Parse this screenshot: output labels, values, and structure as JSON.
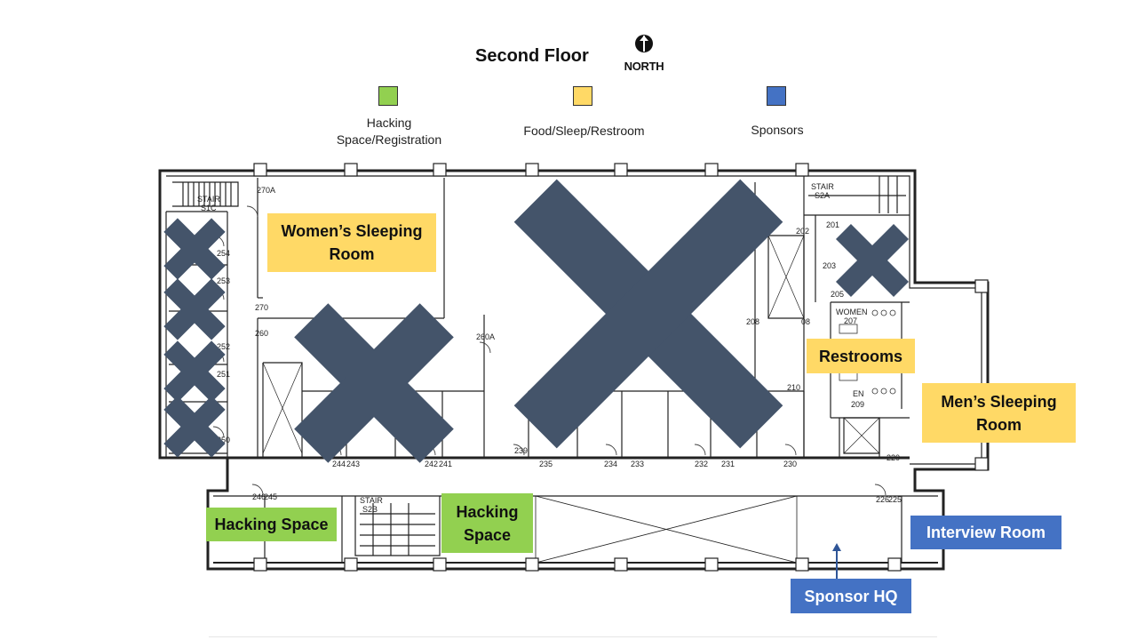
{
  "header": {
    "title": "Second Floor",
    "north_label": "NORTH"
  },
  "colors": {
    "hacking": "#92d050",
    "food": "#ffd966",
    "sponsors": "#4472c4",
    "cross": "#44546a"
  },
  "legend": [
    {
      "key": "hacking",
      "label_line1": "Hacking",
      "label_line2": "Space/Registration"
    },
    {
      "key": "food",
      "label_line1": "Food/Sleep/Restroom",
      "label_line2": ""
    },
    {
      "key": "sponsors",
      "label_line1": "Sponsors",
      "label_line2": ""
    }
  ],
  "areas": {
    "womens_sleeping": {
      "line1": "Women’s Sleeping",
      "line2": "Room"
    },
    "restrooms": {
      "line1": "Restrooms"
    },
    "mens_sleeping": {
      "line1": "Men’s Sleeping",
      "line2": "Room"
    },
    "hacking_space_left": {
      "line1": "Hacking Space"
    },
    "hacking_space_center": {
      "line1": "Hacking",
      "line2": "Space"
    },
    "interview_room": {
      "line1": "Interview Room"
    },
    "sponsor_hq": {
      "line1": "Sponsor HQ"
    }
  },
  "room_numbers": [
    "270A",
    "S1C",
    "270",
    "260",
    "254",
    "253",
    "252",
    "251",
    "250",
    "260A",
    "244",
    "243",
    "242",
    "241",
    "239",
    "235",
    "234",
    "233",
    "232",
    "231",
    "230",
    "202",
    "201",
    "203",
    "205",
    "S2A",
    "208",
    "210",
    "207",
    "209",
    "220",
    "226",
    "225",
    "246",
    "245",
    "S2B",
    "WOMEN",
    "EN",
    "STAIR",
    "STAIR",
    "STAIR",
    "08"
  ]
}
